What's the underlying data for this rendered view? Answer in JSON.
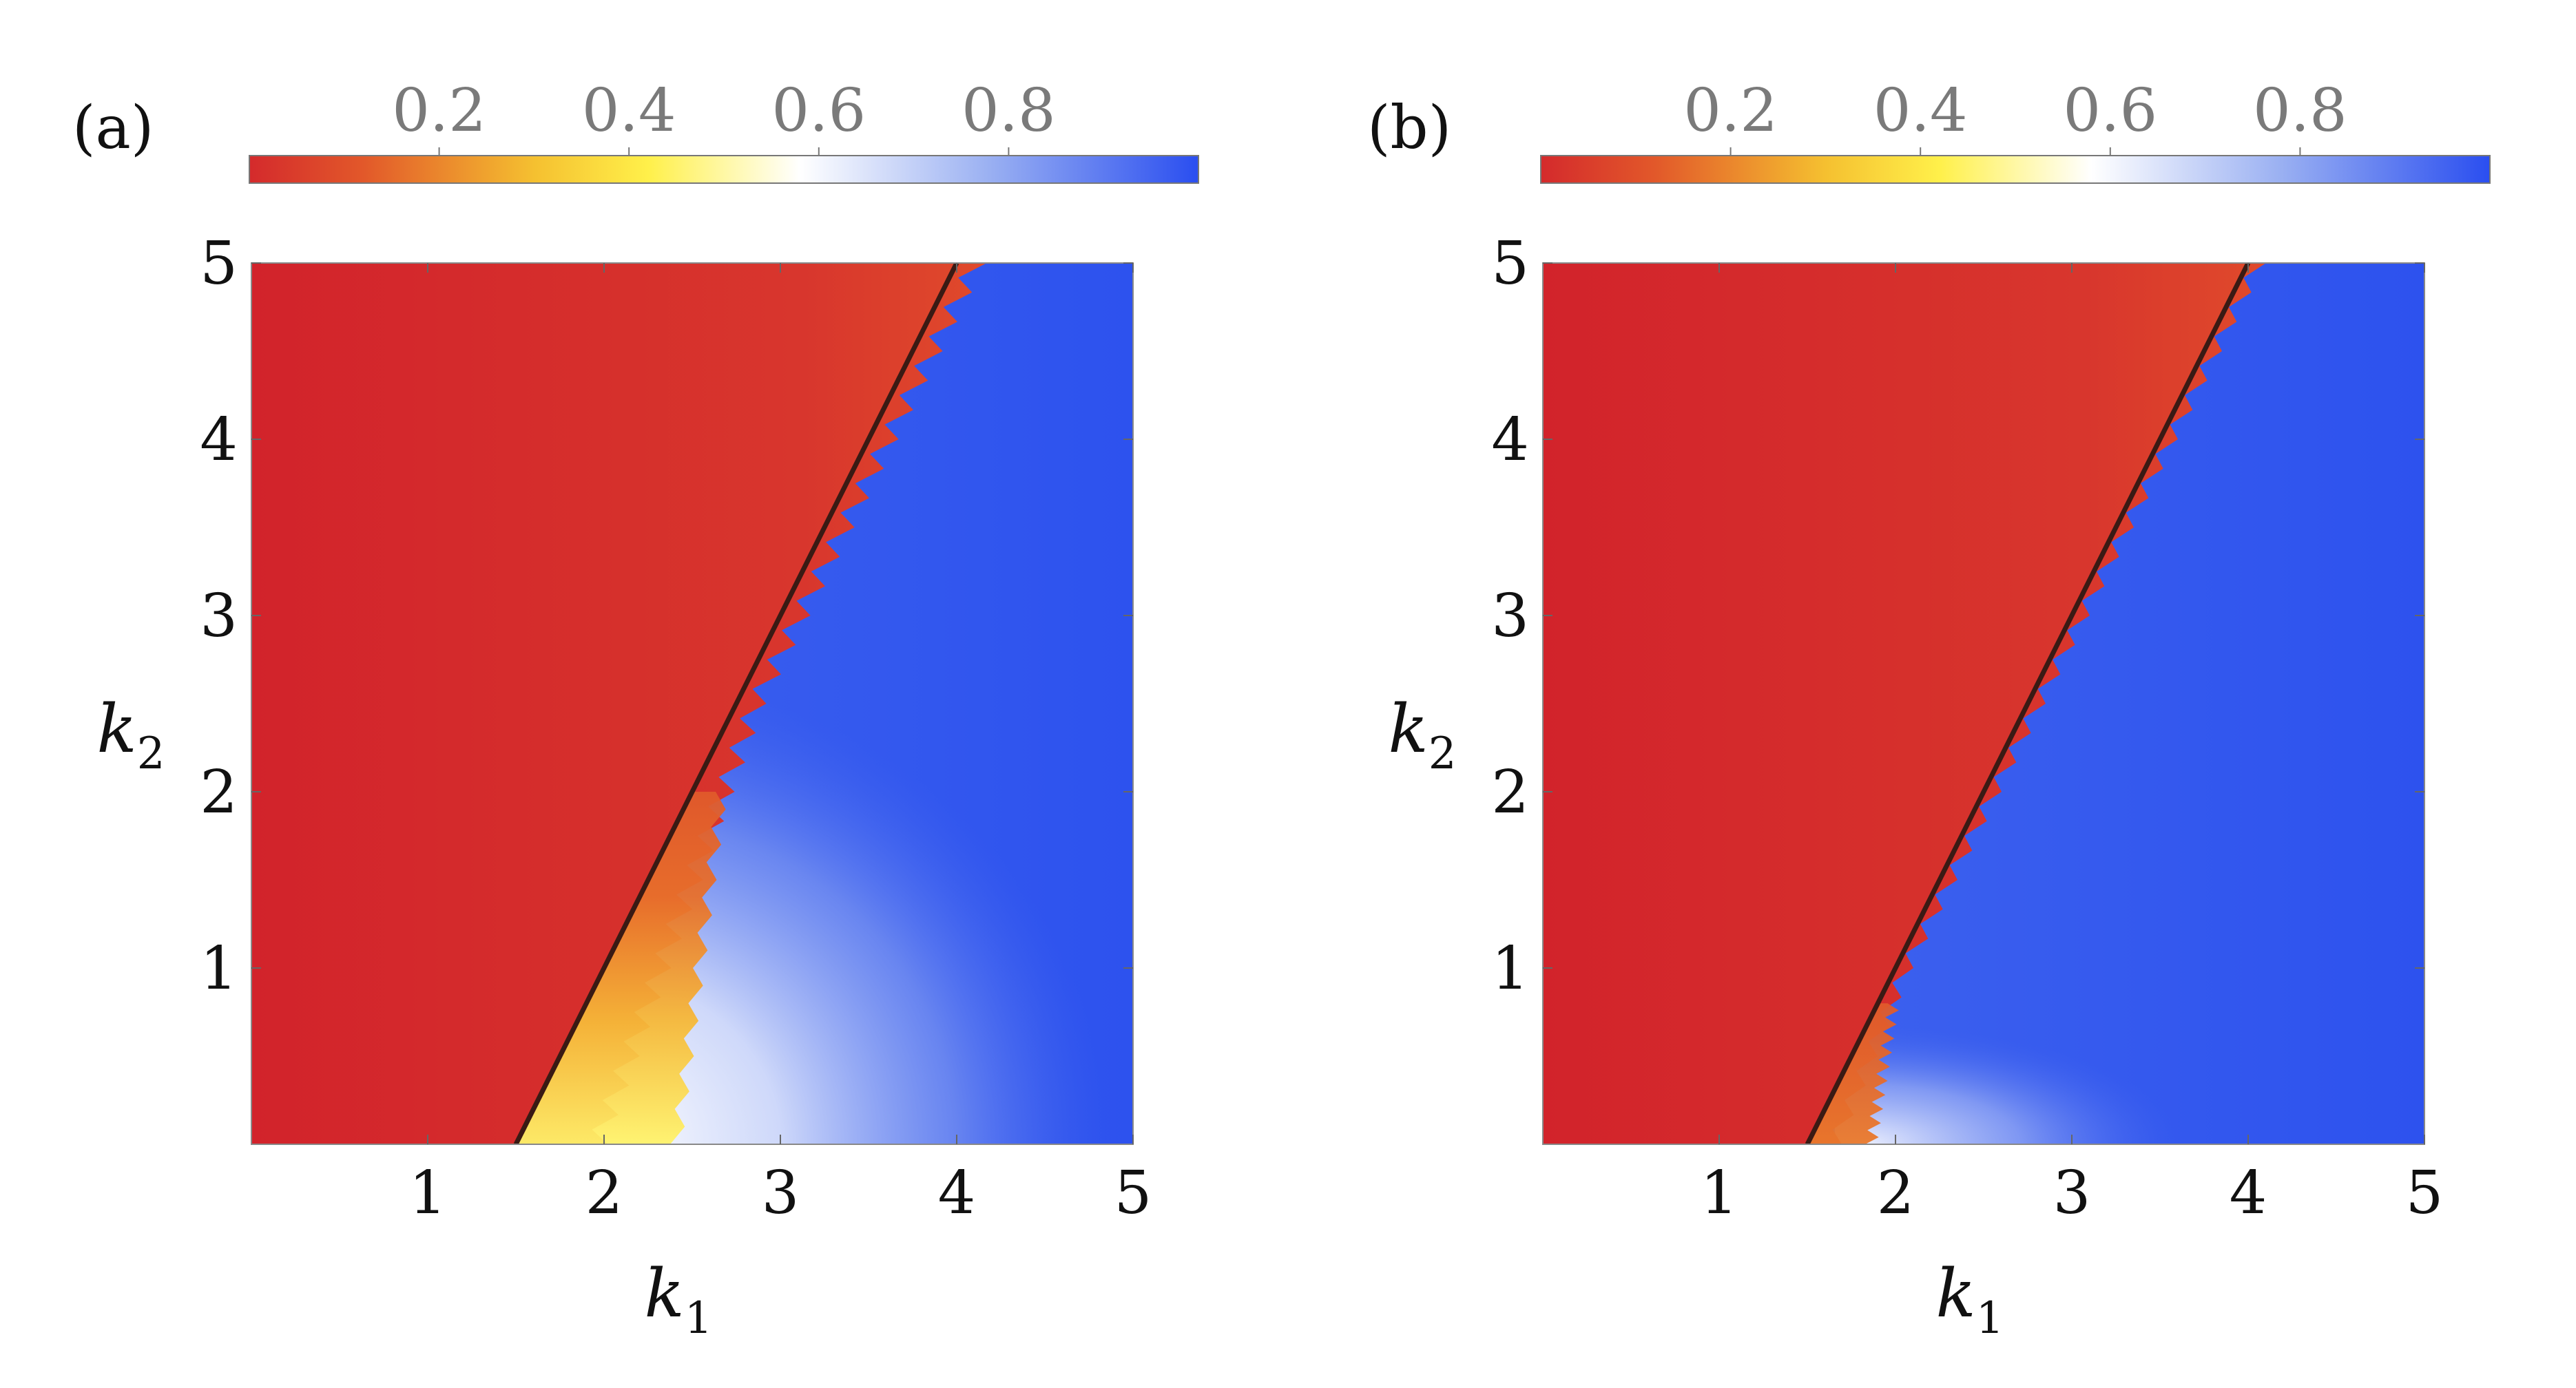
{
  "chart_data": [
    {
      "type": "heatmap",
      "panel_label": "(a)",
      "xlabel_main": "k",
      "xlabel_sub": "1",
      "ylabel_main": "k",
      "ylabel_sub": "2",
      "xlim": [
        0,
        5
      ],
      "ylim": [
        0,
        5
      ],
      "x_ticks": [
        1,
        2,
        3,
        4,
        5
      ],
      "y_ticks": [
        1,
        2,
        3,
        4,
        5
      ],
      "colorbar": {
        "range": [
          0,
          1
        ],
        "ticks": [
          0.2,
          0.4,
          0.6,
          0.8
        ],
        "tick_labels": [
          "0.2",
          "0.4",
          "0.6",
          "0.8"
        ],
        "colors": [
          "#d42a2c",
          "#e2582a",
          "#f5c030",
          "#fff04a",
          "#ffffff",
          "#9ab0f2",
          "#2a4ef0"
        ]
      },
      "boundary_line": {
        "points": [
          [
            1.5,
            0
          ],
          [
            4.0,
            5.0
          ]
        ],
        "color": "#3a1a14"
      },
      "regions": {
        "left_of_line_value": 0.05,
        "right_of_line_value": 0.97,
        "transition_zone": {
          "k2_range": [
            0,
            2.0
          ],
          "peak_value": 0.32,
          "white_value": 0.6
        }
      }
    },
    {
      "type": "heatmap",
      "panel_label": "(b)",
      "xlabel_main": "k",
      "xlabel_sub": "1",
      "ylabel_main": "k",
      "ylabel_sub": "2",
      "xlim": [
        0,
        5
      ],
      "ylim": [
        0,
        5
      ],
      "x_ticks": [
        1,
        2,
        3,
        4,
        5
      ],
      "y_ticks": [
        1,
        2,
        3,
        4,
        5
      ],
      "colorbar": {
        "range": [
          0,
          1
        ],
        "ticks": [
          0.2,
          0.4,
          0.6,
          0.8
        ],
        "tick_labels": [
          "0.2",
          "0.4",
          "0.6",
          "0.8"
        ],
        "colors": [
          "#d42a2c",
          "#e2582a",
          "#f5c030",
          "#fff04a",
          "#ffffff",
          "#9ab0f2",
          "#2a4ef0"
        ]
      },
      "boundary_line": {
        "points": [
          [
            1.5,
            0
          ],
          [
            4.0,
            5.0
          ]
        ],
        "color": "#3a1a14"
      },
      "regions": {
        "left_of_line_value": 0.05,
        "right_of_line_value": 0.97,
        "transition_zone": {
          "k2_range": [
            0,
            0.8
          ],
          "peak_value": 0.12,
          "white_value": 0.7
        }
      }
    }
  ]
}
